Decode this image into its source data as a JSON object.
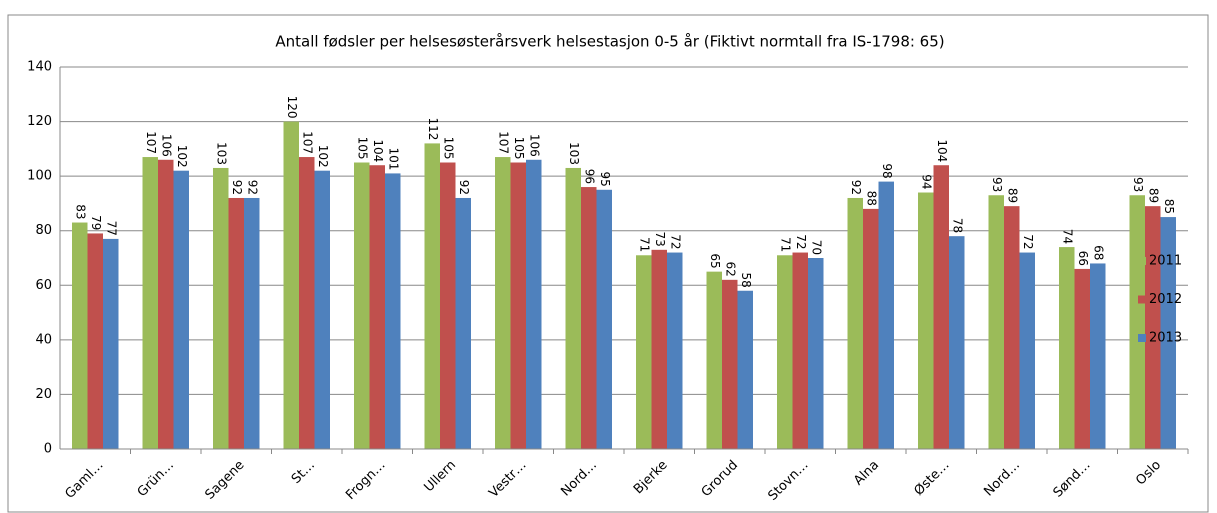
{
  "chart_data": {
    "type": "bar",
    "title": "Antall fødsler per helsesøsterårsverk helsestasjon 0-5 år (Fiktivt normtall fra IS-1798: 65)",
    "categories": [
      "Gaml…",
      "Grün…",
      "Sagene",
      "St…",
      "Frogn…",
      "Ullern",
      "Vestr…",
      "Nord…",
      "Bjerke",
      "Grorud",
      "Stovn…",
      "Alna",
      "Øste…",
      "Nord…",
      "Sønd…",
      "Oslo"
    ],
    "series": [
      {
        "name": "2011",
        "color": "#9bbb59",
        "values": [
          83,
          107,
          103,
          120,
          105,
          112,
          107,
          103,
          71,
          65,
          71,
          92,
          94,
          93,
          74,
          93
        ]
      },
      {
        "name": "2012",
        "color": "#c0504d",
        "values": [
          79,
          106,
          92,
          107,
          104,
          105,
          105,
          96,
          73,
          62,
          72,
          88,
          104,
          89,
          66,
          89
        ]
      },
      {
        "name": "2013",
        "color": "#4f81bd",
        "values": [
          77,
          102,
          92,
          102,
          101,
          92,
          106,
          95,
          72,
          58,
          70,
          98,
          78,
          72,
          68,
          85
        ]
      }
    ],
    "ylim": [
      0,
      140
    ],
    "yticks": [
      0,
      20,
      40,
      60,
      80,
      100,
      120,
      140
    ],
    "grid": true,
    "legend": "right"
  }
}
